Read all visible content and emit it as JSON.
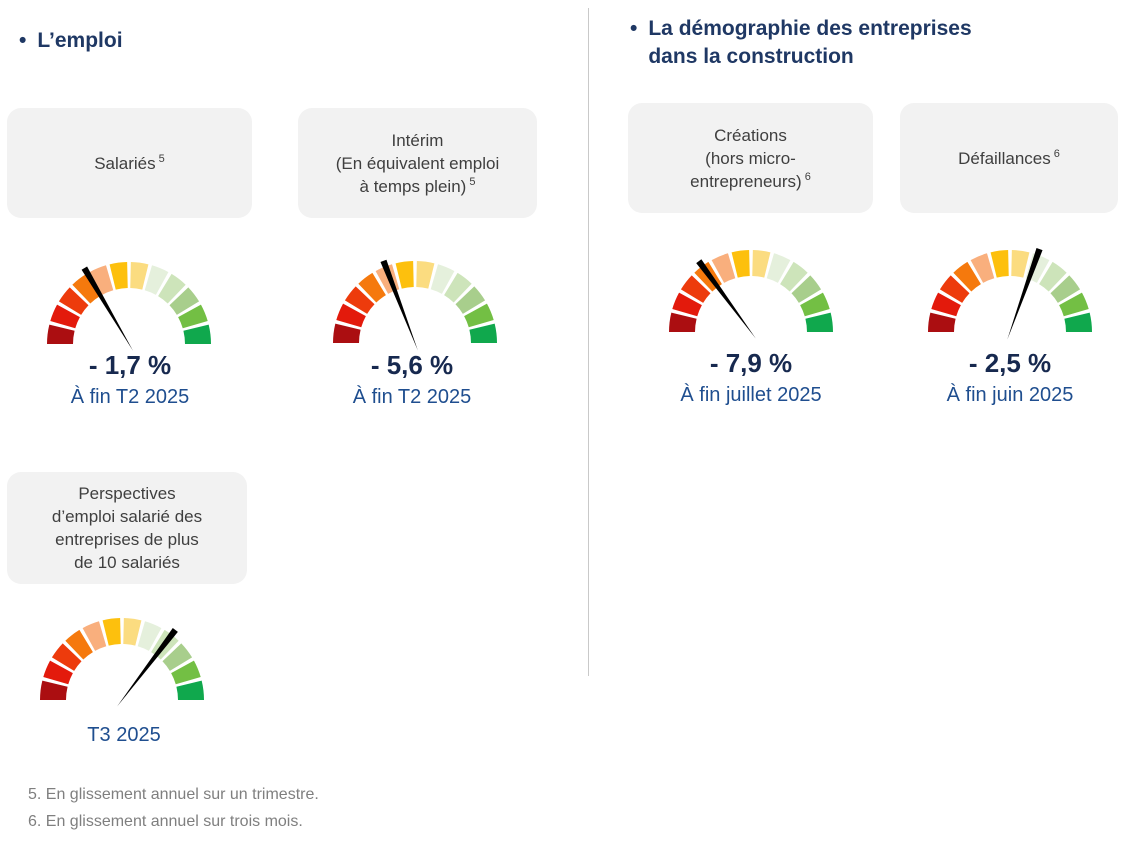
{
  "page": {
    "bullet": "•"
  },
  "sections": {
    "left": {
      "title": "L’emploi"
    },
    "right": {
      "title_line1": "La démographie des entreprises",
      "title_line2": "dans la construction"
    }
  },
  "gauges": [
    {
      "id": "salaries",
      "box_lines": [
        "Salariés"
      ],
      "ref": "5",
      "value": "- 1,7 %",
      "date": "À fin T2 2025",
      "needle_angle_deg": 120.5
    },
    {
      "id": "interim",
      "box_lines": [
        "Intérim",
        "(En équivalent emploi",
        "à temps plein)"
      ],
      "ref": "5",
      "value": "- 5,6 %",
      "date": "À fin T2 2025",
      "needle_angle_deg": 111
    },
    {
      "id": "perspectives",
      "box_lines": [
        "Perspectives",
        "d’emploi salarié des",
        "entreprises de plus",
        "de 10 salariés"
      ],
      "ref": "",
      "value": "",
      "date": "T3 2025",
      "needle_angle_deg": 52.7
    },
    {
      "id": "creations",
      "box_lines": [
        "Créations",
        "(hors micro-",
        "entrepreneurs)"
      ],
      "ref": "6",
      "value": "- 7,9 %",
      "date": "À fin juillet 2025",
      "needle_angle_deg": 126.4
    },
    {
      "id": "defaillances",
      "box_lines": [
        "Défaillances"
      ],
      "ref": "6",
      "value": "- 2,5 %",
      "date": "À fin juin 2025",
      "needle_angle_deg": 70.4
    }
  ],
  "gauge_segments": [
    "#AB0E11",
    "#E31A0C",
    "#ED3B0C",
    "#F5790D",
    "#F9AF7D",
    "#FDC00D",
    "#FBDC80",
    "#E5F0DC",
    "#CDE4BA",
    "#A8CE8C",
    "#73BF44",
    "#10A84D"
  ],
  "colors": {
    "title": "#1F3864",
    "value": "#17294F",
    "date": "#1F4E8F",
    "box_bg": "#F2F2F2",
    "box_text": "#3F3F3F",
    "footnote": "#7F7F7F",
    "divider": "#C9C9C9",
    "needle": "#000000"
  },
  "footnotes": [
    "5. En glissement annuel sur un trimestre.",
    "6. En glissement annuel sur trois mois."
  ],
  "chart_data": [
    {
      "type": "gauge",
      "label": "Salariés",
      "value_percent": -1.7,
      "value_label": "- 1,7 %",
      "period": "À fin T2 2025",
      "needle_angle_deg": 120.5,
      "scale": "semicircular 12-segment scale, dark red (worst, left) to green (best, right)"
    },
    {
      "type": "gauge",
      "label": "Intérim (En équivalent emploi à temps plein)",
      "value_percent": -5.6,
      "value_label": "- 5,6 %",
      "period": "À fin T2 2025",
      "needle_angle_deg": 111,
      "scale": "semicircular 12-segment scale, dark red (worst, left) to green (best, right)"
    },
    {
      "type": "gauge",
      "label": "Perspectives d’emploi salarié des entreprises de plus de 10 salariés",
      "value_percent": null,
      "value_label": "",
      "period": "T3 2025",
      "needle_angle_deg": 52.7,
      "scale": "semicircular 12-segment scale, dark red (worst, left) to green (best, right)"
    },
    {
      "type": "gauge",
      "label": "Créations (hors micro-entrepreneurs)",
      "value_percent": -7.9,
      "value_label": "- 7,9 %",
      "period": "À fin juillet 2025",
      "needle_angle_deg": 126.4,
      "scale": "semicircular 12-segment scale, dark red (worst, left) to green (best, right)"
    },
    {
      "type": "gauge",
      "label": "Défaillances",
      "value_percent": -2.5,
      "value_label": "- 2,5 %",
      "period": "À fin juin 2025",
      "needle_angle_deg": 70.4,
      "scale": "semicircular 12-segment scale, dark red (worst, left) to green (best, right)"
    }
  ]
}
